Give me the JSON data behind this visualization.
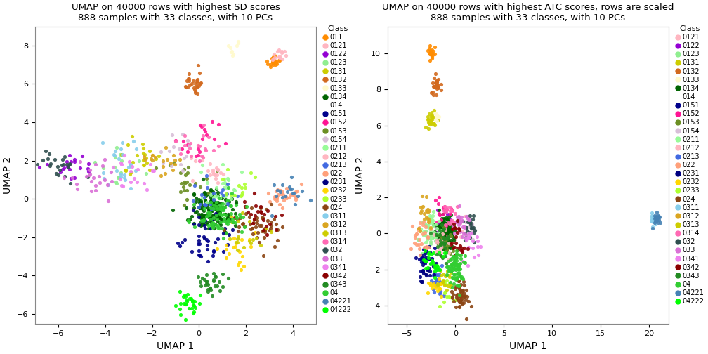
{
  "title1": "UMAP on 40000 rows with highest SD scores\n888 samples with 33 classes, with 10 PCs",
  "title2": "UMAP on 40000 rows with highest ATC scores, rows are scaled\n888 samples with 33 classes, with 10 PCs",
  "xlabel": "UMAP 1",
  "ylabel": "UMAP 2",
  "legend_title": "Class",
  "classes": [
    "011",
    "0121",
    "0122",
    "0123",
    "0131",
    "0132",
    "0133",
    "0134",
    "014",
    "0151",
    "0152",
    "0153",
    "0154",
    "0211",
    "0212",
    "0213",
    "022",
    "0231",
    "0232",
    "0233",
    "024",
    "0311",
    "0312",
    "0313",
    "0314",
    "032",
    "033",
    "0341",
    "0342",
    "0343",
    "04",
    "04221",
    "04222"
  ],
  "color_map": {
    "011": "#FF8C00",
    "0121": "#FFB6C1",
    "0122": "#9400D3",
    "0123": "#90EE90",
    "0131": "#CDCD00",
    "0132": "#D2691E",
    "0133": "#FFFACD",
    "0134": "#006400",
    "014": null,
    "0151": "#00008B",
    "0152": "#FF1493",
    "0153": "#6B8E23",
    "0154": "#D8BFD8",
    "0211": "#98FB98",
    "0212": "#FFB6C1",
    "0213": "#4169E1",
    "022": "#FFA07A",
    "0231": "#000080",
    "0232": "#FFD700",
    "0233": "#ADFF2F",
    "024": "#8B4513",
    "0311": "#87CEEB",
    "0312": "#DAA520",
    "0313": "#CDCD00",
    "0314": "#FF69B4",
    "032": "#2F4F4F",
    "033": "#DA70D6",
    "0341": "#EE82EE",
    "0342": "#8B0000",
    "0343": "#228B22",
    "04": "#32CD32",
    "04221": "#4682B4",
    "04222": "#00FF00"
  },
  "plot1": {
    "xlim": [
      -7,
      5
    ],
    "ylim": [
      -6.5,
      9
    ],
    "xticks": [
      -6,
      -4,
      -2,
      0,
      2,
      4
    ],
    "yticks": [
      -6,
      -4,
      -2,
      0,
      2,
      4,
      6,
      8
    ]
  },
  "plot2": {
    "xlim": [
      -7,
      22
    ],
    "ylim": [
      -5,
      11.5
    ],
    "xticks": [
      -5,
      0,
      5,
      10,
      15,
      20
    ],
    "yticks": [
      -4,
      -2,
      0,
      2,
      4,
      6,
      8,
      10
    ]
  },
  "n_samples": 888,
  "bg_color": "#FFFFFF"
}
